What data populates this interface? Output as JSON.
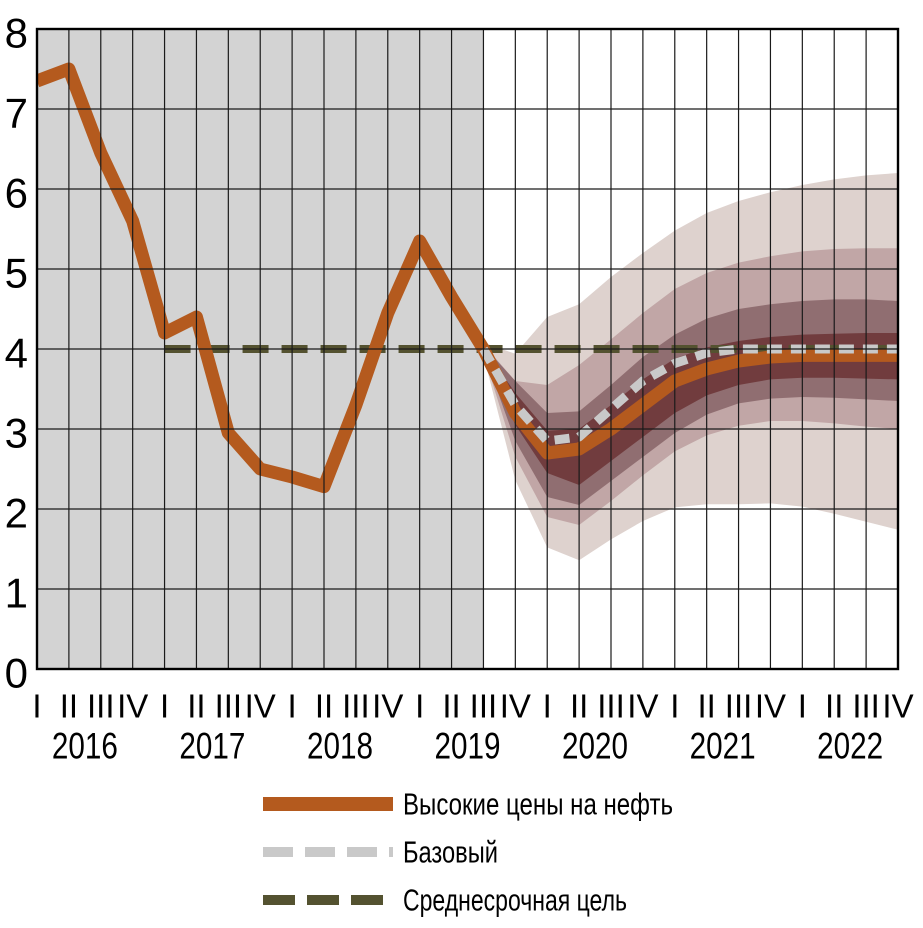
{
  "colors": {
    "history_bg": "#d3d3d3",
    "plot_bg": "#ffffff",
    "grid": "#1a1a1a",
    "border": "#000000",
    "text": "#000000",
    "scenario_high": "#b45a1e",
    "baseline": "#c9c9c9",
    "target": "#545230",
    "band_outer": "#ded2ce",
    "band_mid": "#c1a6a6",
    "band_inner": "#906e71",
    "band_core": "#713c3e"
  },
  "chart_data": {
    "type": "line",
    "title": "",
    "xlabel": "",
    "ylabel": "",
    "ylim": [
      0,
      8
    ],
    "grid": true,
    "y_tick_labels": [
      "0",
      "1",
      "2",
      "3",
      "4",
      "5",
      "6",
      "7",
      "8"
    ],
    "x_quarter_labels": [
      "I",
      "II",
      "III",
      "IV"
    ],
    "years": [
      "2016",
      "2017",
      "2018",
      "2019",
      "2020",
      "2021",
      "2022"
    ],
    "history_shaded_range": {
      "from": "2016 I",
      "to": "2019 III"
    },
    "series": [
      {
        "name": "Высокие цены на нефть",
        "style": "solid",
        "color": "#b45a1e",
        "start_quarter_index": 0,
        "values": [
          7.35,
          7.5,
          6.45,
          5.6,
          4.2,
          4.4,
          2.95,
          2.5,
          2.4,
          2.28,
          3.3,
          4.45,
          5.35,
          4.65,
          4.0,
          3.2,
          2.7,
          2.75,
          3.0,
          3.3,
          3.6,
          3.75,
          3.85,
          3.9,
          3.92,
          3.92,
          3.92,
          3.92
        ]
      },
      {
        "name": "Базовый",
        "style": "dashed",
        "color": "#c9c9c9",
        "start_quarter_index": 14,
        "values": [
          4.0,
          3.3,
          2.85,
          2.9,
          3.25,
          3.6,
          3.82,
          3.95,
          4.0,
          4.0,
          4.0,
          4.0,
          4.0,
          4.0
        ]
      },
      {
        "name": "Среднесрочная цель",
        "style": "dashed",
        "color": "#545230",
        "start_quarter_index": 4,
        "constant_value": 4.0
      }
    ],
    "fan": {
      "start_quarter_index": 14,
      "bands": [
        {
          "name": "outer-band",
          "color": "#ded2ce",
          "upper": [
            4.08,
            3.94,
            4.4,
            4.56,
            4.9,
            5.2,
            5.48,
            5.7,
            5.85,
            5.96,
            6.05,
            6.12,
            6.17,
            6.2
          ],
          "lower": [
            3.92,
            2.36,
            1.52,
            1.36,
            1.62,
            1.85,
            2.02,
            2.06,
            2.06,
            2.07,
            2.03,
            1.94,
            1.84,
            1.74
          ]
        },
        {
          "name": "mid-band",
          "color": "#c1a6a6",
          "upper": [
            4.06,
            3.6,
            3.55,
            3.8,
            4.12,
            4.45,
            4.75,
            4.95,
            5.08,
            5.16,
            5.22,
            5.25,
            5.26,
            5.26
          ],
          "lower": [
            3.94,
            2.65,
            1.9,
            1.8,
            2.1,
            2.42,
            2.72,
            2.92,
            3.04,
            3.1,
            3.1,
            3.07,
            3.03,
            3.0
          ]
        },
        {
          "name": "inner-band",
          "color": "#906e71",
          "upper": [
            4.04,
            3.6,
            3.2,
            3.22,
            3.55,
            3.9,
            4.18,
            4.38,
            4.5,
            4.56,
            4.6,
            4.62,
            4.62,
            4.6
          ],
          "lower": [
            3.96,
            2.85,
            2.15,
            2.05,
            2.35,
            2.65,
            2.95,
            3.18,
            3.32,
            3.38,
            3.4,
            3.39,
            3.37,
            3.35
          ]
        },
        {
          "name": "core-band",
          "color": "#713c3e",
          "upper": [
            4.02,
            3.45,
            2.98,
            3.0,
            3.3,
            3.62,
            3.88,
            4.02,
            4.1,
            4.15,
            4.18,
            4.19,
            4.2,
            4.2
          ],
          "lower": [
            3.98,
            3.05,
            2.45,
            2.3,
            2.6,
            2.9,
            3.2,
            3.42,
            3.55,
            3.62,
            3.64,
            3.64,
            3.63,
            3.62
          ]
        }
      ]
    }
  },
  "legend": {
    "items": [
      {
        "label": "Высокие цены на нефть",
        "style": "solid",
        "color": "#b45a1e"
      },
      {
        "label": "Базовый",
        "style": "dashed",
        "color": "#c9c9c9"
      },
      {
        "label": "Среднесрочная цель",
        "style": "dashed",
        "color": "#545230"
      }
    ]
  }
}
